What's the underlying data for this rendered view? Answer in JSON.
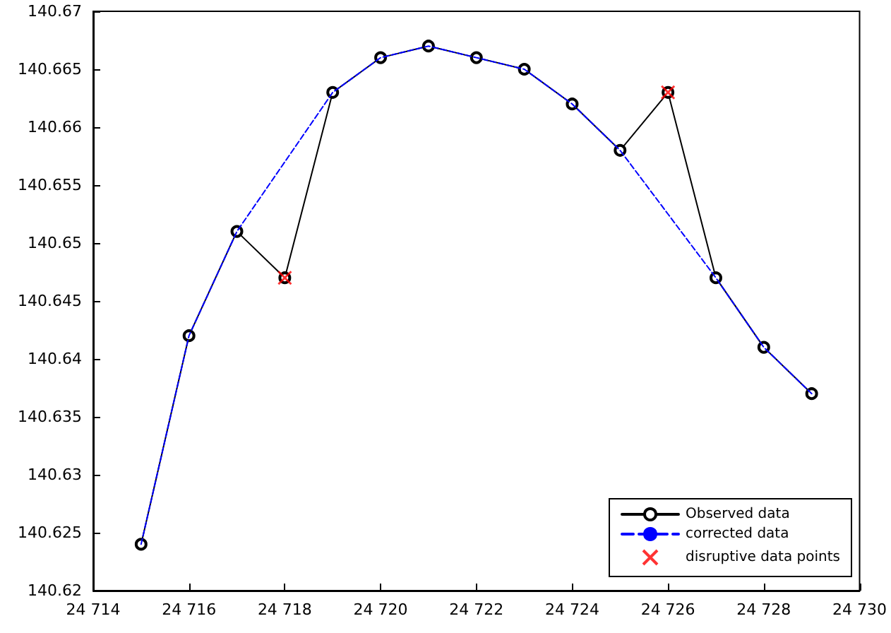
{
  "chart_data": {
    "type": "line",
    "x": [
      24715,
      24716,
      24717,
      24718,
      24719,
      24720,
      24721,
      24722,
      24723,
      24724,
      24725,
      24726,
      24727,
      24728,
      24729
    ],
    "series": [
      {
        "name": "Observed data",
        "color": "#000000",
        "marker": "circle",
        "line_style": "solid",
        "values": [
          140.624,
          140.642,
          140.651,
          140.647,
          140.663,
          140.666,
          140.667,
          140.666,
          140.665,
          140.662,
          140.658,
          140.663,
          140.647,
          140.641,
          140.637
        ]
      },
      {
        "name": "corrected data",
        "color": "#0000ff",
        "marker": "none",
        "line_style": "dashed",
        "values": [
          140.624,
          140.642,
          140.651,
          140.657,
          140.663,
          140.666,
          140.667,
          140.666,
          140.665,
          140.662,
          140.658,
          140.6525,
          140.647,
          140.641,
          140.637
        ]
      },
      {
        "name": "disruptive data points",
        "type": "scatter",
        "color": "#ff0000",
        "marker": "cross",
        "x": [
          24718,
          24726
        ],
        "values": [
          140.647,
          140.663
        ]
      }
    ],
    "xlim": [
      24714,
      24730
    ],
    "xticks": [
      {
        "value": 24714,
        "label": "24 714"
      },
      {
        "value": 24716,
        "label": "24 716"
      },
      {
        "value": 24718,
        "label": "24 718"
      },
      {
        "value": 24720,
        "label": "24 720"
      },
      {
        "value": 24722,
        "label": "24 722"
      },
      {
        "value": 24724,
        "label": "24 724"
      },
      {
        "value": 24726,
        "label": "24 726"
      },
      {
        "value": 24728,
        "label": "24 728"
      },
      {
        "value": 24730,
        "label": "24 730"
      }
    ],
    "ylim": [
      140.62,
      140.67
    ],
    "yticks": [
      140.62,
      140.625,
      140.63,
      140.635,
      140.64,
      140.645,
      140.65,
      140.655,
      140.66,
      140.665,
      140.67
    ],
    "grid": false,
    "legend": "bottom right"
  }
}
